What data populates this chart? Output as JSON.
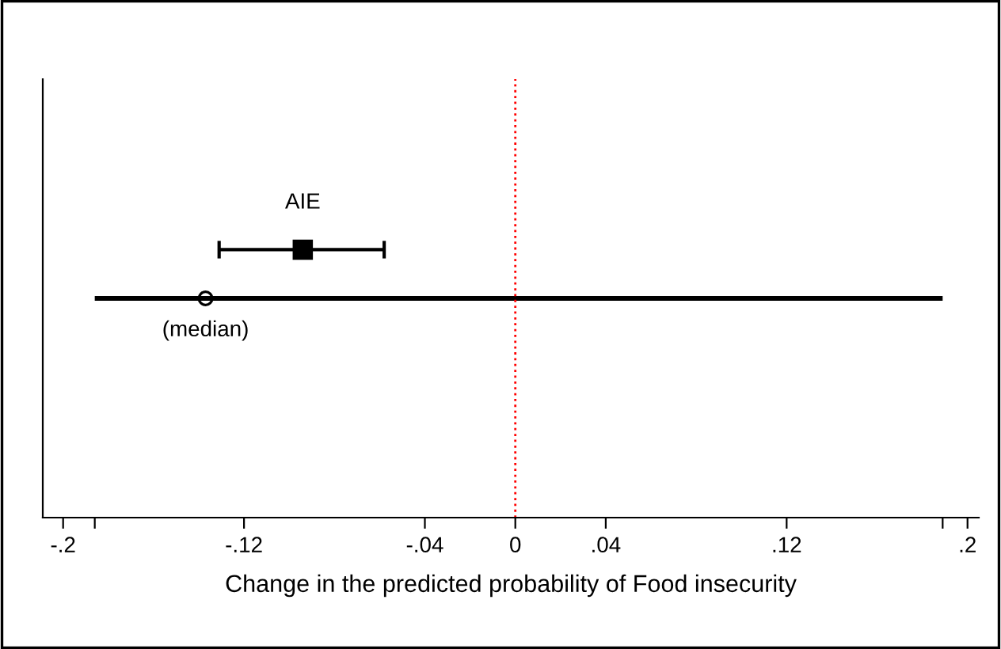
{
  "chart_data": {
    "type": "scatter",
    "orientation": "horizontal",
    "xlabel": "Change in the predicted probability of Food insecurity",
    "categories": [
      null,
      null,
      null,
      null,
      null,
      null,
      null,
      null,
      null
    ],
    "series": [
      {
        "name": "AIE",
        "marker": "square",
        "color": "#000000",
        "values": [
          null,
          null,
          null,
          -0.094,
          null,
          null,
          null,
          null,
          null
        ],
        "errors": [
          null,
          null,
          null,
          [
            -0.131,
            -0.058
          ],
          null,
          null,
          null,
          null,
          null
        ]
      },
      {
        "type": "bar",
        "color": "#000000",
        "base": [
          null,
          null,
          null,
          null,
          -0.186,
          null,
          null,
          null,
          null
        ],
        "values": [
          null,
          null,
          null,
          null,
          0.375,
          null,
          null,
          null,
          null
        ]
      },
      {
        "marker": "circle",
        "color": "#000000",
        "values": [
          null,
          null,
          null,
          null,
          -0.137,
          null,
          null,
          null,
          null
        ]
      }
    ],
    "annotations": [
      "(median)"
    ],
    "xlim": [
      -0.209,
      0.205
    ],
    "xticks": [
      {
        "value": -0.2,
        "label": "-.2"
      },
      {
        "value": -0.186,
        "label": null
      },
      {
        "value": -0.12,
        "label": "-.12"
      },
      {
        "value": -0.04,
        "label": "-.04"
      },
      0,
      {
        "value": 0.04,
        "label": ".04"
      },
      {
        "value": 0.12,
        "label": ".12"
      },
      {
        "value": 0.189,
        "label": null
      },
      {
        "value": 0.2,
        "label": ".2"
      }
    ],
    "ref_lines": [
      {
        "axis": "x",
        "value": 0,
        "color": "#ff0000",
        "line_style": "dotted"
      }
    ],
    "tick_labels": "x"
  }
}
